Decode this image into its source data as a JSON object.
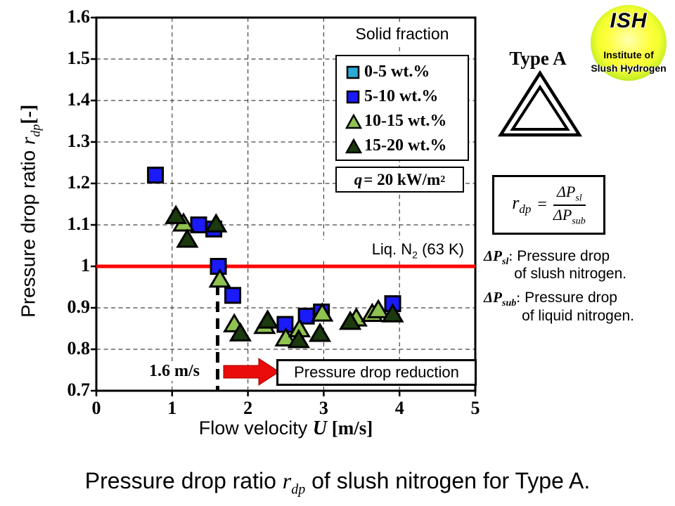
{
  "chart_data": {
    "type": "scatter",
    "title": "",
    "xlabel": {
      "pre": "Flow velocity ",
      "var": "U",
      "post": " [m/s]"
    },
    "ylabel": {
      "pre": "Pressure drop ratio ",
      "var": "r",
      "sub": "dp",
      "post": "[-]"
    },
    "xlim": [
      0,
      5
    ],
    "ylim": [
      0.7,
      1.6
    ],
    "x_tick_values": [
      0,
      1,
      2,
      3,
      4,
      5
    ],
    "x_tick_labels": [
      "0",
      "1",
      "2",
      "3",
      "4",
      "5"
    ],
    "y_tick_values": [
      1.6,
      1.5,
      1.4,
      1.3,
      1.2,
      1.1,
      1.0,
      0.9,
      0.8,
      0.7
    ],
    "y_tick_labels": [
      "1.6",
      "1.5",
      "1.4",
      "1.3",
      "1.2",
      "1.1",
      "1",
      "0.9",
      "0.8",
      "0.7"
    ],
    "grid": "dashed",
    "legend_position": "top-right",
    "legend_title": "Solid fraction",
    "series": [
      {
        "name": "0-5 wt.%",
        "marker": "square",
        "color": "#2BAAD6",
        "points": []
      },
      {
        "name": "5-10 wt.%",
        "marker": "square",
        "color": "#1A1AFA",
        "points": [
          [
            0.78,
            1.22
          ],
          [
            1.35,
            1.1
          ],
          [
            1.55,
            1.09
          ],
          [
            1.61,
            1.0
          ],
          [
            1.8,
            0.93
          ],
          [
            2.49,
            0.86
          ],
          [
            2.77,
            0.88
          ],
          [
            2.97,
            0.89
          ],
          [
            3.91,
            0.91
          ]
        ]
      },
      {
        "name": "10-15 wt.%",
        "marker": "triangle",
        "color": "#8FC24E",
        "points": [
          [
            1.15,
            1.105
          ],
          [
            1.63,
            0.97
          ],
          [
            1.82,
            0.862
          ],
          [
            2.22,
            0.858
          ],
          [
            2.5,
            0.828
          ],
          [
            2.68,
            0.85
          ],
          [
            2.98,
            0.888
          ],
          [
            3.43,
            0.876
          ],
          [
            3.64,
            0.887
          ],
          [
            3.72,
            0.896
          ]
        ]
      },
      {
        "name": "15-20 wt.%",
        "marker": "triangle",
        "color": "#1B3A0E",
        "points": [
          [
            1.05,
            1.123
          ],
          [
            1.2,
            1.066
          ],
          [
            1.58,
            1.103
          ],
          [
            1.9,
            0.84
          ],
          [
            2.26,
            0.871
          ],
          [
            2.67,
            0.824
          ],
          [
            2.95,
            0.839
          ],
          [
            3.35,
            0.868
          ],
          [
            3.91,
            0.886
          ]
        ]
      }
    ],
    "reference_line": {
      "y": 1.0,
      "color": "#FF0000",
      "label": {
        "pre": "Liq. N",
        "sub": "2",
        "post": " (63 K)"
      }
    },
    "vertical_line": {
      "x": 1.6,
      "style": "dashed",
      "color": "#000000",
      "label": "1.6 m/s"
    },
    "heat_flux_note": {
      "var": "q",
      "mid": " = 20 kW/m",
      "sup": "2"
    },
    "reduction_note": "Pressure drop reduction",
    "reduction_arrow_color": "#EA0B0B"
  },
  "right_panel": {
    "type_label": "Type A",
    "logo": {
      "abbr": "ISH",
      "line1": "Institute of",
      "line2": "Slush Hydrogen",
      "circle_outer_color": "#84CE1B",
      "circle_inner_color": "#FEFF3D"
    },
    "formula": {
      "lhs": "r",
      "lhs_sub": "dp",
      "equals": "=",
      "num": "ΔP",
      "num_sub": "sl",
      "den": "ΔP",
      "den_sub": "sub"
    },
    "definitions": [
      {
        "sym": "ΔP",
        "sym_sub": "sl",
        "colon": ":",
        "text1": "Pressure drop",
        "text2": "of slush nitrogen."
      },
      {
        "sym": "ΔP",
        "sym_sub": "sub",
        "colon": ":",
        "text1": "Pressure drop",
        "text2": "of liquid nitrogen."
      }
    ]
  },
  "caption": {
    "pre": "Pressure drop ratio ",
    "var": "r",
    "sub": "dp",
    "post": " of slush nitrogen for Type A."
  }
}
